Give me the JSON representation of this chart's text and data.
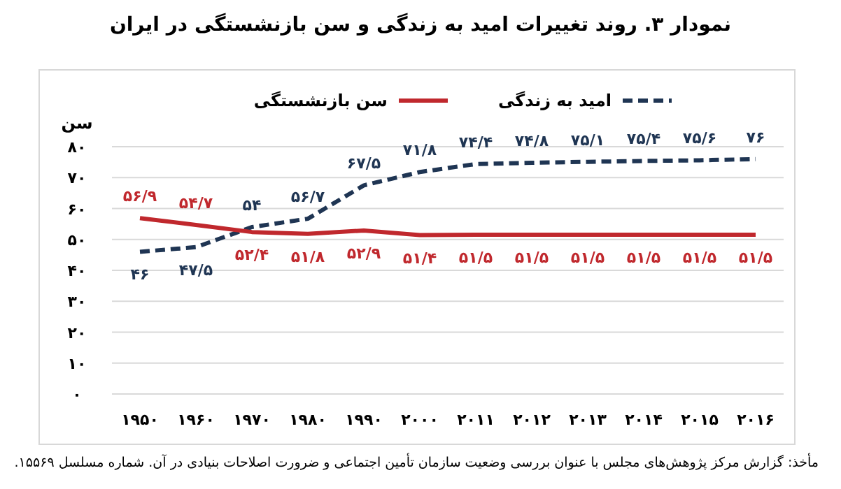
{
  "chart_data": {
    "type": "line",
    "title": "نمودار ۳. روند تغییرات امید به زندگی و سن بازنشستگی در ایران",
    "ylabel": "سن",
    "annotations": [
      "مأخذ: گزارش مرکز پژوهش‌های مجلس با عنوان بررسی وضعیت سازمان تأمین اجتماعی و ضرورت اصلاحات بنیادی در آن. شماره مسلسل ۱۵۵۶۹."
    ],
    "categories": [
      "۱۹۵۰",
      "۱۹۶۰",
      "۱۹۷۰",
      "۱۹۸۰",
      "۱۹۹۰",
      "۲۰۰۰",
      "۲۰۱۱",
      "۲۰۱۲",
      "۲۰۱۳",
      "۲۰۱۴",
      "۲۰۱۵",
      "۲۰۱۶"
    ],
    "series": [
      {
        "name": "امید به زندگی",
        "color": "#1f3553",
        "line_style": "dashed",
        "values": [
          46,
          47.5,
          54,
          56.7,
          67.5,
          71.8,
          74.4,
          74.8,
          75.1,
          75.4,
          75.6,
          76
        ],
        "value_labels": [
          "۴۶",
          "۴۷/۵",
          "۵۴",
          "۵۶/۷",
          "۶۷/۵",
          "۷۱/۸",
          "۷۴/۴",
          "۷۴/۸",
          "۷۵/۱",
          "۷۵/۴",
          "۷۵/۶",
          "۷۶"
        ]
      },
      {
        "name": "سن بازنشستگی",
        "color": "#c0282d",
        "line_style": "solid",
        "values": [
          56.9,
          54.7,
          52.4,
          51.8,
          52.9,
          51.4,
          51.5,
          51.5,
          51.5,
          51.5,
          51.5,
          51.5
        ],
        "value_labels": [
          "۵۶/۹",
          "۵۴/۷",
          "۵۲/۴",
          "۵۱/۸",
          "۵۲/۹",
          "۵۱/۴",
          "۵۱/۵",
          "۵۱/۵",
          "۵۱/۵",
          "۵۱/۵",
          "۵۱/۵",
          "۵۱/۵"
        ]
      }
    ],
    "ylim": [
      0,
      80
    ],
    "yticks": [
      {
        "value": 0,
        "label": "۰"
      },
      {
        "value": 10,
        "label": "۱۰"
      },
      {
        "value": 20,
        "label": "۲۰"
      },
      {
        "value": 30,
        "label": "۳۰"
      },
      {
        "value": 40,
        "label": "۴۰"
      },
      {
        "value": 50,
        "label": "۵۰"
      },
      {
        "value": 60,
        "label": "۶۰"
      },
      {
        "value": 70,
        "label": "۷۰"
      },
      {
        "value": 80,
        "label": "۸۰"
      }
    ],
    "grid": "y",
    "legend": "top"
  }
}
